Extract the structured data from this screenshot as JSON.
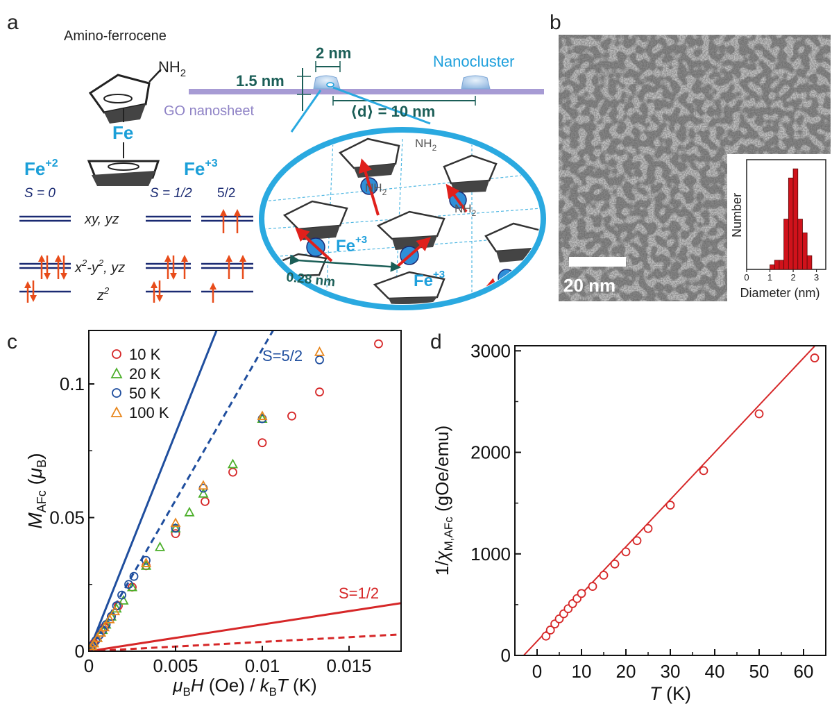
{
  "panels": {
    "a": {
      "letter": "a",
      "molecule_name": "Amino-ferrocene",
      "nh2": "NH",
      "nh2_sub": "2",
      "fe": "Fe",
      "fe2": "Fe",
      "fe2_sup": "+2",
      "fe3": "Fe",
      "fe3_sup": "+3",
      "s0": "S = 0",
      "s12": "S = 1/2",
      "s52": "5/2",
      "orb_xy": "xy, yz",
      "orb_x2y2": "x",
      "orb_x2y2_sup1": "2",
      "orb_x2y2_mid": "-y",
      "orb_x2y2_sup2": "2",
      "orb_x2y2_end": ", yz",
      "orb_z2": "z",
      "orb_z2_sup": "2",
      "dim_height": "1.5 nm",
      "dim_width": "2 nm",
      "spacing": "⟨d⟩ = 10 nm",
      "sheet_label": "GO nanosheet",
      "cluster_label": "Nanocluster",
      "inset_nh2": "NH",
      "inset_nh2_sub": "2",
      "inset_fe": "Fe",
      "inset_fe_sup": "+3",
      "inset_dist": "0.28 nm"
    },
    "b": {
      "letter": "b",
      "scale_bar": "20 nm",
      "hist_ylabel": "Number",
      "hist_xlabel": "Diameter (nm)",
      "hist_ticks": [
        "0",
        "1",
        "2",
        "3"
      ]
    },
    "c": {
      "letter": "c"
    },
    "d": {
      "letter": "d"
    }
  },
  "chart_data": [
    {
      "panel": "b-inset",
      "type": "bar",
      "xlabel": "Diameter (nm)",
      "ylabel": "Number",
      "xlim": [
        0,
        3.4
      ],
      "bin_width": 0.2,
      "bins": [
        1.1,
        1.3,
        1.5,
        1.7,
        1.9,
        2.1,
        2.3,
        2.5,
        2.7
      ],
      "values": [
        1,
        2,
        2,
        11,
        20,
        22,
        11,
        8,
        3
      ],
      "ylim": [
        0,
        24
      ],
      "color": "#d0121b"
    },
    {
      "panel": "c",
      "type": "scatter",
      "xlabel": "μ_B H (Oe) / k_B T (K)",
      "ylabel": "M_AFc (μ_B)",
      "xlim": [
        0,
        0.018
      ],
      "ylim": [
        0,
        0.12
      ],
      "xticks": [
        0,
        0.005,
        0.01,
        0.015
      ],
      "xtick_labels": [
        "0",
        "0.005",
        "0.01",
        "0.015"
      ],
      "yticks": [
        0,
        0.05,
        0.1
      ],
      "ytick_labels": [
        "0",
        "0.05",
        "0.1"
      ],
      "series": [
        {
          "name": "10 K",
          "marker": "circle",
          "color": "#d62728",
          "x": [
            0.0001,
            0.0003,
            0.0006,
            0.0009,
            0.0013,
            0.0017,
            0.0025,
            0.0033,
            0.005,
            0.0067,
            0.0083,
            0.01,
            0.0117,
            0.0133,
            0.0167
          ],
          "y": [
            0.001,
            0.003,
            0.006,
            0.009,
            0.013,
            0.017,
            0.024,
            0.032,
            0.044,
            0.056,
            0.067,
            0.078,
            0.088,
            0.097,
            0.115
          ]
        },
        {
          "name": "20 K",
          "marker": "triangle",
          "color": "#4caf2a",
          "x": [
            0.0001,
            0.0003,
            0.0005,
            0.0008,
            0.001,
            0.0013,
            0.0016,
            0.002,
            0.0025,
            0.0033,
            0.0041,
            0.005,
            0.0058,
            0.0066,
            0.0083,
            0.01
          ],
          "y": [
            0.001,
            0.003,
            0.005,
            0.008,
            0.01,
            0.013,
            0.016,
            0.019,
            0.024,
            0.032,
            0.039,
            0.046,
            0.052,
            0.059,
            0.07,
            0.087
          ]
        },
        {
          "name": "50 K",
          "marker": "circle",
          "color": "#1f4e9e",
          "x": [
            0.0001,
            0.0002,
            0.0004,
            0.0006,
            0.0008,
            0.001,
            0.0013,
            0.0016,
            0.0019,
            0.0023,
            0.0026,
            0.0033,
            0.005,
            0.0066,
            0.01,
            0.0133
          ],
          "y": [
            0.001,
            0.002,
            0.004,
            0.006,
            0.008,
            0.01,
            0.013,
            0.017,
            0.021,
            0.025,
            0.028,
            0.034,
            0.046,
            0.061,
            0.087,
            0.109
          ]
        },
        {
          "name": "100 K",
          "marker": "triangle",
          "color": "#e8861c",
          "x": [
            0.0001,
            0.0002,
            0.0003,
            0.0005,
            0.0007,
            0.0009,
            0.0012,
            0.0015,
            0.0033,
            0.005,
            0.0066,
            0.01,
            0.0133
          ],
          "y": [
            0.001,
            0.002,
            0.003,
            0.005,
            0.007,
            0.009,
            0.012,
            0.015,
            0.033,
            0.048,
            0.062,
            0.088,
            0.112
          ]
        }
      ],
      "lines": [
        {
          "label": "S=5/2",
          "color": "#1f4e9e",
          "style": "solid",
          "slope": 16.3
        },
        {
          "label": "",
          "color": "#1f4e9e",
          "style": "dashed",
          "slope": 11.3
        },
        {
          "label": "S=1/2",
          "color": "#d62728",
          "style": "solid",
          "slope": 1.0
        },
        {
          "label": "",
          "color": "#d62728",
          "style": "dashed",
          "slope": 0.35
        }
      ],
      "legend": "top-left"
    },
    {
      "panel": "d",
      "type": "line",
      "xlabel": "T (K)",
      "ylabel": "1/χ_M,AFc (gOe/emu)",
      "xlim": [
        -5,
        65
      ],
      "ylim": [
        0,
        3050
      ],
      "xticks": [
        0,
        10,
        20,
        30,
        40,
        50,
        60
      ],
      "yticks": [
        0,
        1000,
        2000,
        3000
      ],
      "color": "#d62728",
      "x": [
        2,
        3,
        4,
        5,
        6,
        7,
        8,
        9,
        10,
        12.5,
        15,
        17.5,
        20,
        22.5,
        25,
        30,
        37.5,
        50,
        62.5
      ],
      "y": [
        190,
        250,
        310,
        360,
        410,
        460,
        510,
        560,
        610,
        680,
        790,
        900,
        1020,
        1130,
        1250,
        1480,
        1820,
        2380,
        2930
      ],
      "fit": {
        "x0": -3,
        "x1": 65,
        "slope": 46.5,
        "intercept": 140
      }
    }
  ]
}
